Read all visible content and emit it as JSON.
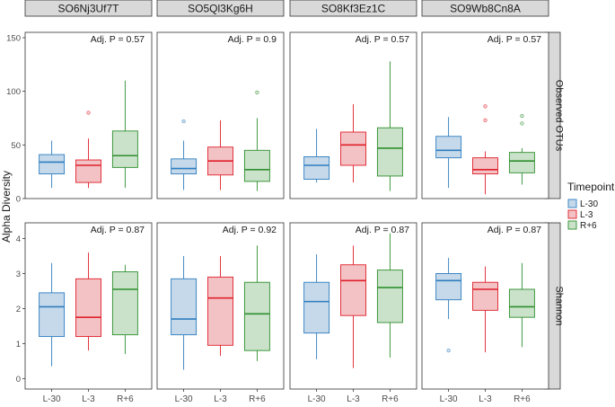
{
  "chart_data": {
    "type": "boxplot",
    "ylabel": "Alpha Diversity",
    "xlabel": "",
    "categories": [
      "L-30",
      "L-3",
      "R+6"
    ],
    "facet_columns": [
      "SO6Nj3Uf7T",
      "SO5Ql3Kg6H",
      "SO8Kf3Ez1C",
      "SO9Wb8Cn8A"
    ],
    "facet_rows": [
      {
        "label": "Observed OTUs",
        "ylim": [
          0,
          155
        ],
        "yticks": [
          "0",
          "50",
          "100",
          "150"
        ],
        "ytick_values": [
          0,
          50,
          100,
          150
        ]
      },
      {
        "label": "Shannon",
        "ylim": [
          -0.3,
          4.45
        ],
        "yticks": [
          "0",
          "1",
          "2",
          "3",
          "4"
        ],
        "ytick_values": [
          0,
          1,
          2,
          3,
          4
        ]
      }
    ],
    "annotations": [
      [
        "Adj. P = 0.57",
        "Adj. P = 0.9",
        "Adj. P = 0.57",
        "Adj. P = 0.57"
      ],
      [
        "Adj. P = 0.87",
        "Adj. P = 0.92",
        "Adj. P = 0.87",
        "Adj. P = 0.87"
      ]
    ],
    "legend": {
      "title": "Timepoint",
      "position": "right",
      "entries": [
        "L-30",
        "L-3",
        "R+6"
      ],
      "colors": [
        "#2e7dbf",
        "#e0202a",
        "#2f8f2f"
      ],
      "fills": [
        "#c5d9ea",
        "#f3c2c5",
        "#c9e2c9"
      ]
    },
    "panels": [
      [
        [
          {
            "min": 10,
            "q1": 23,
            "median": 34,
            "q3": 41,
            "max": 54,
            "outliers": []
          },
          {
            "min": 10,
            "q1": 15,
            "median": 31,
            "q3": 36,
            "max": 56,
            "outliers": [
              80
            ]
          },
          {
            "min": 10,
            "q1": 29,
            "median": 40,
            "q3": 63,
            "max": 110,
            "outliers": []
          }
        ],
        [
          {
            "min": 8,
            "q1": 23,
            "median": 28,
            "q3": 37,
            "max": 54,
            "outliers": [
              72
            ]
          },
          {
            "min": 8,
            "q1": 22,
            "median": 35,
            "q3": 48,
            "max": 73,
            "outliers": []
          },
          {
            "min": 7,
            "q1": 16,
            "median": 27,
            "q3": 45,
            "max": 75,
            "outliers": [
              99
            ]
          }
        ],
        [
          {
            "min": 15,
            "q1": 18,
            "median": 31,
            "q3": 39,
            "max": 65,
            "outliers": []
          },
          {
            "min": 15,
            "q1": 31,
            "median": 50,
            "q3": 62,
            "max": 88,
            "outliers": []
          },
          {
            "min": 7,
            "q1": 21,
            "median": 47,
            "q3": 66,
            "max": 128,
            "outliers": []
          }
        ],
        [
          {
            "min": 10,
            "q1": 38,
            "median": 45,
            "q3": 58,
            "max": 76,
            "outliers": []
          },
          {
            "min": 4,
            "q1": 23,
            "median": 27,
            "q3": 38,
            "max": 44,
            "outliers": [
              73,
              86
            ]
          },
          {
            "min": 13,
            "q1": 24,
            "median": 35,
            "q3": 43,
            "max": 47,
            "outliers": [
              70,
              77
            ]
          }
        ]
      ],
      [
        [
          {
            "min": 0.35,
            "q1": 1.2,
            "median": 2.05,
            "q3": 2.45,
            "max": 3.3,
            "outliers": []
          },
          {
            "min": 0.8,
            "q1": 1.2,
            "median": 1.75,
            "q3": 2.85,
            "max": 3.6,
            "outliers": []
          },
          {
            "min": 0.7,
            "q1": 1.25,
            "median": 2.55,
            "q3": 3.05,
            "max": 3.25,
            "outliers": []
          }
        ],
        [
          {
            "min": 0.25,
            "q1": 1.25,
            "median": 1.7,
            "q3": 2.85,
            "max": 3.5,
            "outliers": []
          },
          {
            "min": 0.65,
            "q1": 0.95,
            "median": 2.3,
            "q3": 2.9,
            "max": 3.5,
            "outliers": []
          },
          {
            "min": 0.5,
            "q1": 0.8,
            "median": 1.85,
            "q3": 2.75,
            "max": 3.8,
            "outliers": []
          }
        ],
        [
          {
            "min": 0.55,
            "q1": 1.3,
            "median": 2.2,
            "q3": 2.75,
            "max": 3.55,
            "outliers": []
          },
          {
            "min": 0.3,
            "q1": 1.8,
            "median": 2.8,
            "q3": 3.25,
            "max": 3.8,
            "outliers": []
          },
          {
            "min": 0.6,
            "q1": 1.6,
            "median": 2.6,
            "q3": 3.1,
            "max": 4.15,
            "outliers": []
          }
        ],
        [
          {
            "min": 1.7,
            "q1": 2.25,
            "median": 2.8,
            "q3": 3.0,
            "max": 3.45,
            "outliers": [
              0.8
            ]
          },
          {
            "min": 0.75,
            "q1": 1.95,
            "median": 2.55,
            "q3": 2.75,
            "max": 3.2,
            "outliers": []
          },
          {
            "min": 0.9,
            "q1": 1.75,
            "median": 2.05,
            "q3": 2.55,
            "max": 3.3,
            "outliers": []
          }
        ]
      ]
    ]
  }
}
